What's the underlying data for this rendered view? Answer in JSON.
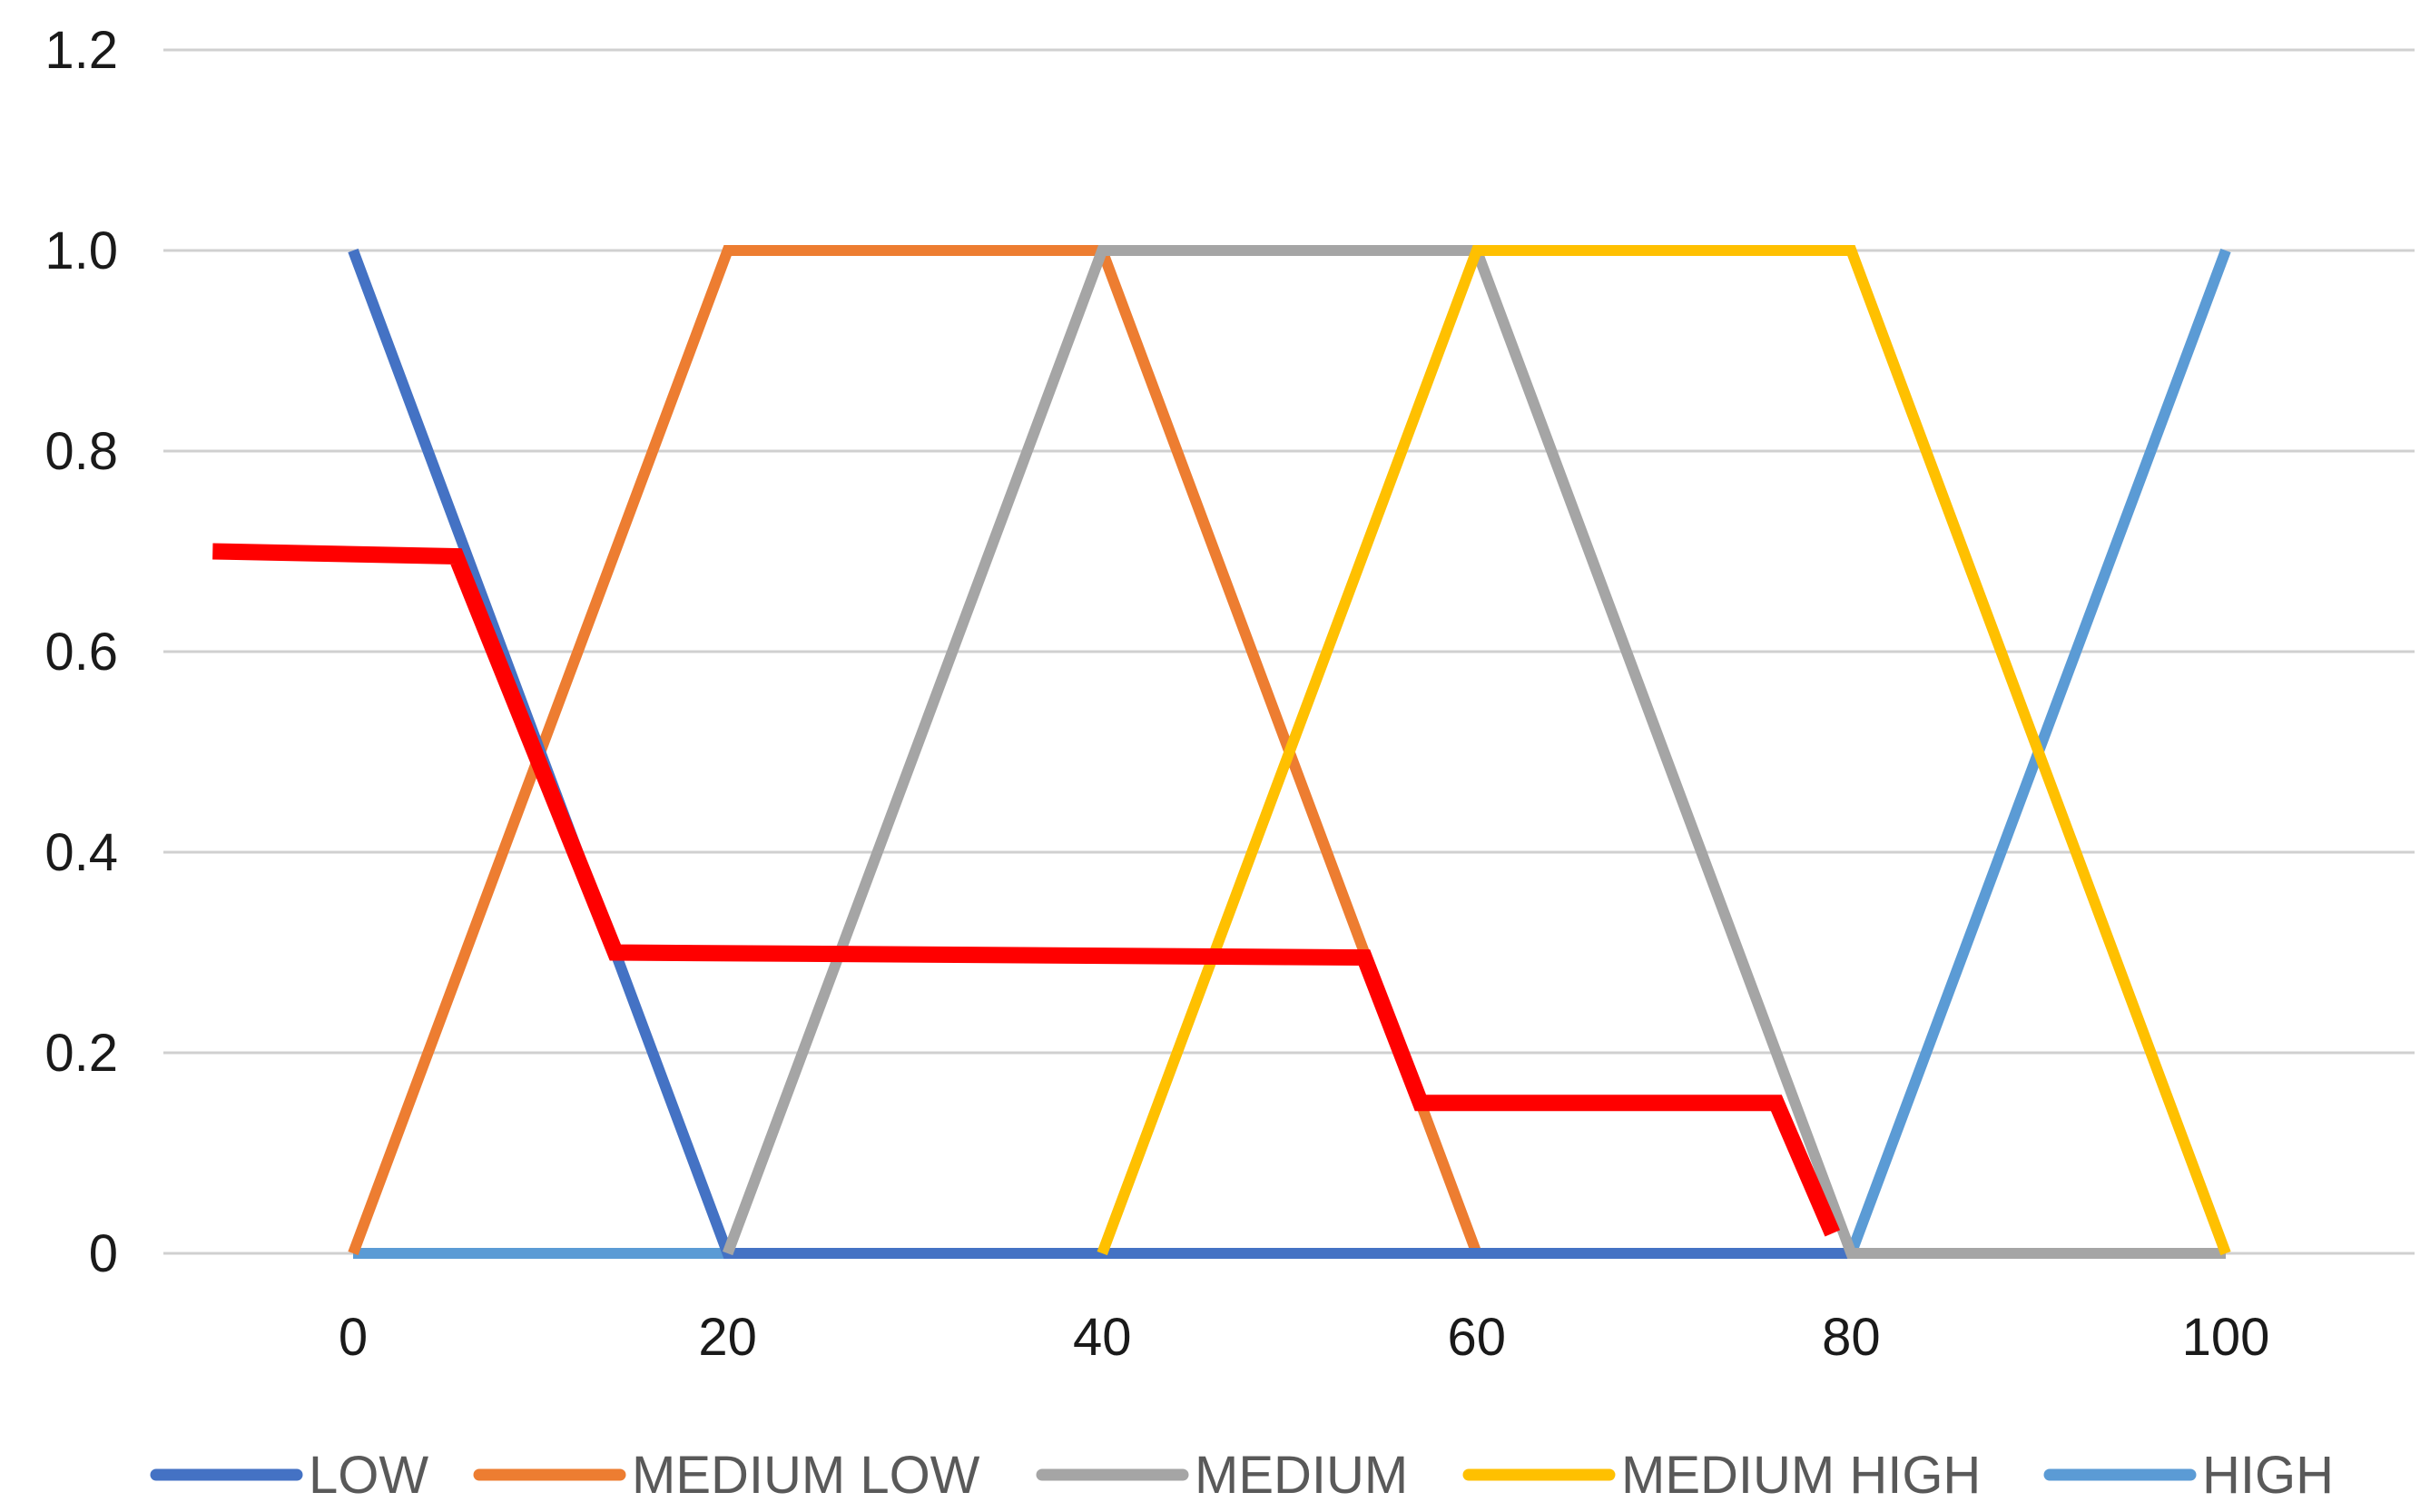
{
  "chart_data": {
    "type": "line",
    "title": "",
    "xlabel": "",
    "ylabel": "",
    "xlim": [
      -10,
      110
    ],
    "ylim": [
      0,
      1.2
    ],
    "x_ticks": [
      0,
      20,
      40,
      60,
      80,
      100
    ],
    "x_tick_labels": [
      "0",
      "20",
      "40",
      "60",
      "80",
      "100"
    ],
    "y_ticks": [
      0,
      0.2,
      0.4,
      0.6,
      0.8,
      1.0,
      1.2
    ],
    "y_tick_labels": [
      "0",
      "0.2",
      "0.4",
      "0.6",
      "0.8",
      "1.0",
      "1.2"
    ],
    "grid": "horizontal",
    "legend_position": "bottom",
    "series": [
      {
        "name": "LOW",
        "color": "#4472C4",
        "points": [
          [
            0,
            1
          ],
          [
            20,
            0
          ],
          [
            100,
            0
          ]
        ]
      },
      {
        "name": "MEDIUM LOW",
        "color": "#ED7D31",
        "points": [
          [
            0,
            0
          ],
          [
            20,
            1
          ],
          [
            40,
            1
          ],
          [
            60,
            0
          ]
        ]
      },
      {
        "name": "MEDIUM",
        "color": "#A5A5A5",
        "points": [
          [
            20,
            0
          ],
          [
            40,
            1
          ],
          [
            60,
            1
          ],
          [
            80,
            0
          ],
          [
            100,
            0
          ]
        ]
      },
      {
        "name": "MEDIUM HIGH",
        "color": "#FFC000",
        "points": [
          [
            40,
            0
          ],
          [
            60,
            1
          ],
          [
            80,
            1
          ],
          [
            100,
            0
          ]
        ]
      },
      {
        "name": "HIGH",
        "color": "#5B9BD5",
        "points": [
          [
            0,
            0
          ],
          [
            80,
            0
          ],
          [
            100,
            1
          ]
        ]
      }
    ],
    "output_curve": {
      "color": "#FF0000",
      "points": [
        [
          -7.5,
          0.7
        ],
        [
          5.5,
          0.695
        ],
        [
          14,
          0.3
        ],
        [
          54,
          0.295
        ],
        [
          57,
          0.15
        ],
        [
          76,
          0.15
        ],
        [
          79,
          0.02
        ]
      ]
    }
  }
}
